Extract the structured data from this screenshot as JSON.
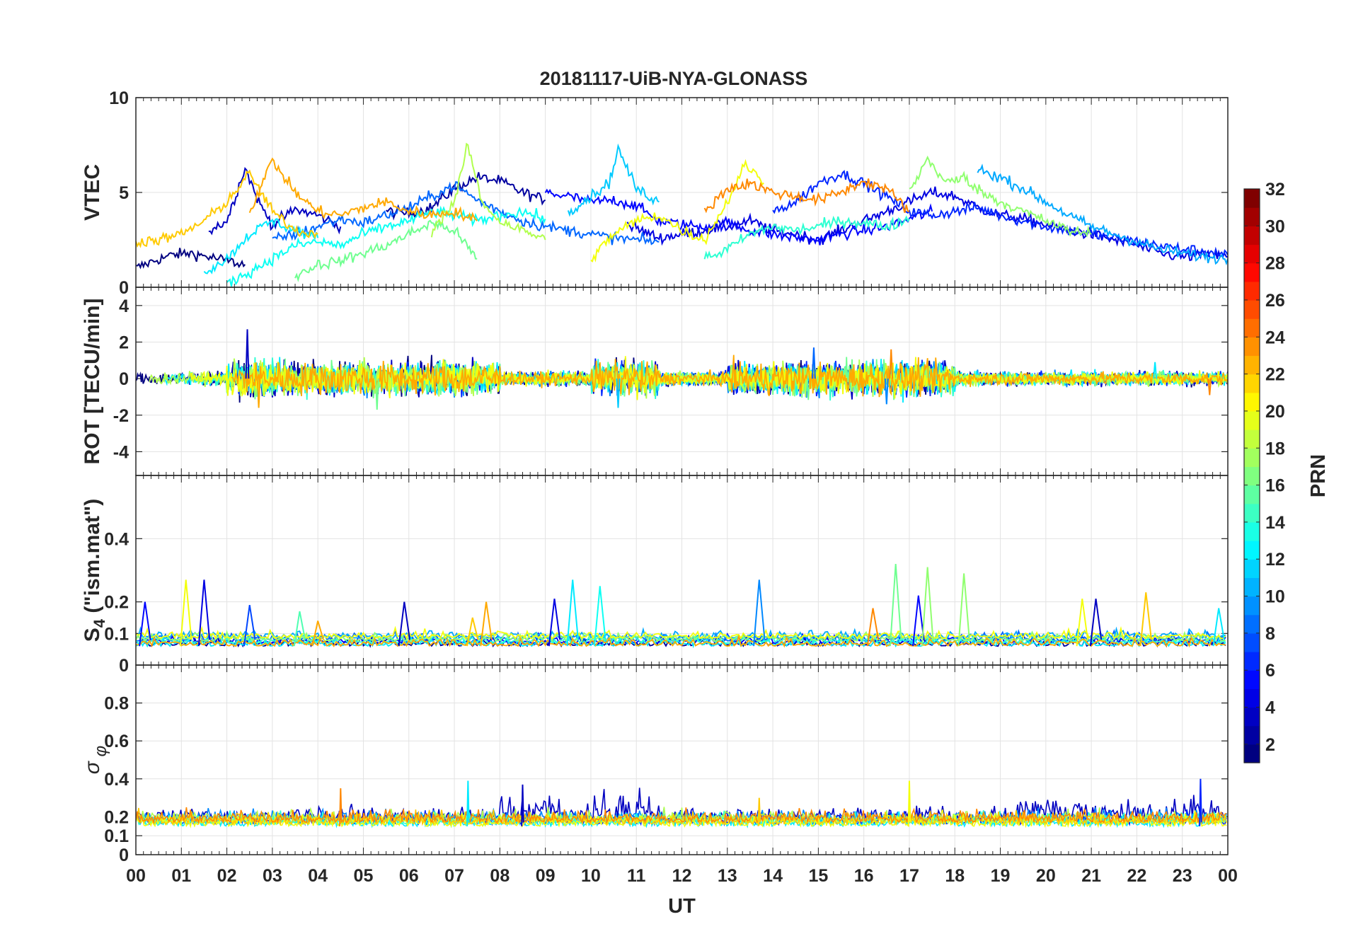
{
  "title": "20181117-UiB-NYA-GLONASS",
  "chart_data": [
    {
      "type": "line",
      "ylabel": "VTEC",
      "ylim": [
        0,
        10
      ],
      "yticks": [
        0,
        5,
        10
      ],
      "grid": true,
      "series": [
        {
          "prn": 1,
          "x": [
            0.0,
            0.4,
            0.8,
            1.2,
            1.6,
            2.0,
            2.4
          ],
          "values": [
            1.0,
            1.4,
            1.7,
            1.8,
            1.6,
            1.4,
            1.2
          ]
        },
        {
          "prn": 2,
          "x": [
            5.5,
            6.0,
            6.5,
            7.0,
            7.5,
            8.0,
            8.5,
            9.0
          ],
          "values": [
            4.0,
            3.9,
            4.2,
            5.2,
            5.8,
            5.6,
            5.0,
            4.6
          ]
        },
        {
          "prn": 3,
          "x": [
            1.6,
            2.0,
            2.4,
            2.7,
            3.0,
            3.5,
            4.0,
            4.5
          ],
          "values": [
            3.0,
            3.5,
            6.3,
            4.5,
            3.3,
            4.1,
            3.8,
            3.2
          ]
        },
        {
          "prn": 4,
          "x": [
            10.8,
            11.5,
            12.0,
            12.5,
            13.0,
            13.5,
            14.0,
            14.5,
            15.0,
            15.5,
            16.0,
            16.5,
            17.0,
            17.5,
            18.0,
            18.5,
            19.0,
            19.5,
            20.0,
            20.5,
            21.0,
            21.5,
            22.0,
            22.5,
            23.0,
            23.5,
            24.0
          ],
          "values": [
            3.3,
            2.6,
            2.8,
            3.0,
            3.2,
            3.5,
            3.0,
            2.8,
            2.5,
            3.0,
            3.5,
            4.0,
            4.5,
            5.0,
            4.8,
            4.2,
            3.8,
            3.6,
            3.3,
            3.0,
            2.8,
            2.5,
            2.2,
            1.8,
            1.6,
            1.7,
            1.6
          ]
        },
        {
          "prn": 5,
          "x": [
            9.0,
            9.5,
            10.0,
            10.5,
            11.0,
            11.5,
            12.0,
            12.5,
            13.0,
            13.5,
            14.0,
            14.5,
            15.0,
            15.5,
            16.0,
            16.5,
            17.0,
            17.5
          ],
          "values": [
            5.0,
            4.8,
            4.5,
            4.6,
            4.3,
            3.5,
            3.3,
            3.2,
            3.4,
            3.0,
            2.8,
            2.6,
            2.5,
            2.8,
            3.0,
            3.2,
            3.6,
            4.0
          ]
        },
        {
          "prn": 6,
          "x": [
            14.0,
            14.5,
            15.0,
            15.5,
            16.0,
            16.5,
            17.0,
            17.5,
            18.0,
            18.5,
            19.0,
            19.5,
            20.0,
            20.5,
            21.0,
            21.5,
            22.0,
            22.5,
            23.0,
            23.5,
            24.0
          ],
          "values": [
            4.0,
            4.5,
            5.5,
            6.0,
            5.5,
            4.8,
            4.0,
            3.8,
            4.0,
            4.2,
            3.8,
            3.5,
            3.2,
            3.0,
            2.8,
            2.6,
            2.4,
            2.2,
            2.0,
            1.9,
            1.7
          ]
        },
        {
          "prn": 8,
          "x": [
            3.0,
            3.5,
            4.0,
            4.5,
            5.0,
            5.5,
            6.0,
            6.5,
            7.0,
            7.5,
            8.0,
            8.5,
            9.0,
            9.5,
            10.0,
            10.5,
            11.0,
            11.5
          ],
          "values": [
            2.5,
            2.8,
            3.2,
            3.6,
            3.4,
            3.8,
            4.2,
            4.8,
            5.4,
            4.6,
            4.0,
            3.5,
            3.2,
            3.0,
            2.8,
            2.6,
            2.5,
            2.4
          ]
        },
        {
          "prn": 10,
          "x": [
            18.5,
            19.0,
            19.5,
            20.0,
            20.5,
            21.0,
            21.5,
            22.0,
            22.5,
            23.0,
            23.5,
            24.0
          ],
          "values": [
            6.2,
            5.8,
            5.2,
            4.5,
            3.8,
            3.2,
            2.8,
            2.4,
            2.0,
            1.8,
            1.6,
            1.5
          ]
        },
        {
          "prn": 11,
          "x": [
            9.5,
            10.0,
            10.4,
            10.6,
            11.0,
            11.5
          ],
          "values": [
            4.0,
            4.8,
            5.5,
            7.3,
            5.2,
            4.5
          ]
        },
        {
          "prn": 12,
          "x": [
            1.5,
            2.0,
            2.5,
            3.0,
            3.5,
            4.0
          ],
          "values": [
            0.8,
            1.5,
            2.8,
            3.5,
            3.0,
            2.6
          ]
        },
        {
          "prn": 13,
          "x": [
            2.0,
            2.5,
            3.0,
            3.5,
            4.0,
            4.5,
            5.0,
            5.5,
            6.0,
            6.5,
            7.0,
            7.5,
            8.0,
            8.5,
            9.0
          ],
          "values": [
            0.2,
            0.8,
            1.5,
            2.2,
            2.4,
            2.2,
            2.8,
            3.2,
            3.5,
            4.0,
            3.8,
            3.5,
            3.8,
            4.0,
            3.6
          ]
        },
        {
          "prn": 14,
          "x": [
            12.5,
            13.0,
            13.5,
            14.0,
            14.5,
            15.0,
            15.5,
            16.0,
            16.5,
            17.0
          ],
          "values": [
            1.5,
            2.0,
            2.8,
            3.2,
            3.0,
            3.2,
            3.5,
            3.4,
            3.2,
            3.6
          ]
        },
        {
          "prn": 16,
          "x": [
            3.5,
            4.0,
            4.5,
            5.0,
            5.5,
            6.0,
            6.5,
            7.0,
            7.5
          ],
          "values": [
            0.6,
            1.2,
            1.4,
            1.8,
            2.2,
            2.8,
            3.4,
            3.0,
            1.5
          ]
        },
        {
          "prn": 17,
          "x": [
            17.0,
            17.4,
            17.8,
            18.2,
            18.6,
            19.0,
            19.5,
            20.0,
            20.5,
            21.0
          ],
          "values": [
            5.0,
            6.8,
            5.5,
            5.8,
            5.0,
            4.5,
            4.0,
            3.5,
            3.0,
            2.8
          ]
        },
        {
          "prn": 18,
          "x": [
            6.5,
            7.0,
            7.3,
            7.6,
            8.0,
            8.5,
            9.0
          ],
          "values": [
            3.0,
            4.5,
            7.5,
            4.5,
            3.5,
            3.0,
            2.5
          ]
        },
        {
          "prn": 20,
          "x": [
            10.0,
            10.5,
            11.0,
            11.5,
            12.0,
            12.5,
            13.0,
            13.4,
            13.8
          ],
          "values": [
            1.5,
            2.8,
            3.5,
            3.8,
            3.0,
            2.5,
            4.5,
            6.5,
            5.5
          ]
        },
        {
          "prn": 22,
          "x": [
            0.0,
            0.5,
            1.0,
            1.5,
            2.0,
            2.5,
            3.0,
            3.5,
            4.0
          ],
          "values": [
            2.4,
            2.5,
            2.8,
            3.5,
            4.5,
            6.0,
            4.0,
            3.0,
            2.8
          ]
        },
        {
          "prn": 23,
          "x": [
            2.5,
            3.0,
            3.5,
            4.0,
            4.5,
            5.0,
            5.5,
            6.0,
            6.5,
            7.0,
            7.5
          ],
          "values": [
            4.0,
            6.7,
            5.0,
            4.0,
            3.8,
            4.2,
            4.5,
            4.0,
            3.8,
            4.0,
            3.5
          ]
        },
        {
          "prn": 24,
          "x": [
            12.5,
            13.0,
            13.5,
            14.0,
            14.5,
            15.0,
            15.5,
            16.0,
            16.5,
            17.0
          ],
          "values": [
            4.0,
            5.2,
            5.5,
            5.0,
            4.8,
            4.6,
            5.0,
            5.6,
            5.2,
            4.0
          ]
        }
      ]
    },
    {
      "type": "line",
      "ylabel": "ROT [TECU/min]",
      "ylim": [
        -5.3,
        5
      ],
      "yticks": [
        -4,
        -2,
        0,
        2,
        4
      ],
      "grid": true,
      "noise_series_prn": [
        1,
        3,
        6,
        9,
        12,
        14,
        16,
        18,
        20,
        23
      ],
      "extremes": [
        {
          "x": 2.45,
          "y": 2.7,
          "prn": 3
        },
        {
          "x": 2.7,
          "y": -1.6,
          "prn": 23
        },
        {
          "x": 5.3,
          "y": -1.7,
          "prn": 16
        },
        {
          "x": 10.6,
          "y": -1.6,
          "prn": 11
        },
        {
          "x": 14.9,
          "y": 1.7,
          "prn": 8
        },
        {
          "x": 16.5,
          "y": -1.4,
          "prn": 9
        },
        {
          "x": 16.6,
          "y": 1.6,
          "prn": 24
        },
        {
          "x": 22.4,
          "y": 0.9,
          "prn": 12
        },
        {
          "x": 23.6,
          "y": -0.9,
          "prn": 24
        }
      ]
    },
    {
      "type": "line",
      "ylabel": "S4 (\"ism.mat\")",
      "ylim": [
        0,
        0.6
      ],
      "yticks": [
        0,
        0.1,
        0.2,
        0.4
      ],
      "grid": true,
      "baseline": 0.06,
      "spikes": [
        {
          "x": 0.2,
          "y": 0.2,
          "prn": 5
        },
        {
          "x": 1.1,
          "y": 0.27,
          "prn": 20
        },
        {
          "x": 1.5,
          "y": 0.27,
          "prn": 4
        },
        {
          "x": 2.5,
          "y": 0.19,
          "prn": 7
        },
        {
          "x": 3.6,
          "y": 0.17,
          "prn": 15
        },
        {
          "x": 4.0,
          "y": 0.14,
          "prn": 23
        },
        {
          "x": 5.9,
          "y": 0.2,
          "prn": 3
        },
        {
          "x": 7.4,
          "y": 0.15,
          "prn": 22
        },
        {
          "x": 7.7,
          "y": 0.2,
          "prn": 23
        },
        {
          "x": 9.2,
          "y": 0.21,
          "prn": 4
        },
        {
          "x": 9.6,
          "y": 0.27,
          "prn": 12
        },
        {
          "x": 10.2,
          "y": 0.25,
          "prn": 13
        },
        {
          "x": 13.7,
          "y": 0.27,
          "prn": 9
        },
        {
          "x": 16.2,
          "y": 0.18,
          "prn": 24
        },
        {
          "x": 16.7,
          "y": 0.32,
          "prn": 16
        },
        {
          "x": 17.2,
          "y": 0.22,
          "prn": 5
        },
        {
          "x": 17.4,
          "y": 0.31,
          "prn": 17
        },
        {
          "x": 18.2,
          "y": 0.29,
          "prn": 17
        },
        {
          "x": 20.8,
          "y": 0.21,
          "prn": 20
        },
        {
          "x": 21.1,
          "y": 0.21,
          "prn": 3
        },
        {
          "x": 22.2,
          "y": 0.23,
          "prn": 22
        },
        {
          "x": 23.8,
          "y": 0.18,
          "prn": 12
        }
      ]
    },
    {
      "type": "line",
      "ylabel": "σ φ",
      "ylim": [
        0,
        1
      ],
      "yticks": [
        0,
        0.1,
        0.2,
        0.4,
        0.6,
        0.8
      ],
      "grid": true,
      "baseline": 0.15,
      "spikes": [
        {
          "x": 7.3,
          "y": 0.39,
          "prn": 12
        },
        {
          "x": 17.0,
          "y": 0.39,
          "prn": 20
        },
        {
          "x": 23.4,
          "y": 0.4,
          "prn": 6
        },
        {
          "x": 13.7,
          "y": 0.3,
          "prn": 22
        },
        {
          "x": 4.5,
          "y": 0.35,
          "prn": 24
        },
        {
          "x": 8.5,
          "y": 0.37,
          "prn": 3
        }
      ]
    }
  ],
  "xaxis": {
    "label": "UT",
    "ticks": [
      "00",
      "01",
      "02",
      "03",
      "04",
      "05",
      "06",
      "07",
      "08",
      "09",
      "10",
      "11",
      "12",
      "13",
      "14",
      "15",
      "16",
      "17",
      "18",
      "19",
      "20",
      "21",
      "22",
      "23",
      "00"
    ]
  },
  "colorbar": {
    "label": "PRN",
    "range": [
      1,
      32
    ],
    "ticks": [
      "2",
      "4",
      "6",
      "8",
      "10",
      "12",
      "14",
      "16",
      "18",
      "20",
      "22",
      "24",
      "26",
      "28",
      "30",
      "32"
    ],
    "colormap": "jet"
  }
}
